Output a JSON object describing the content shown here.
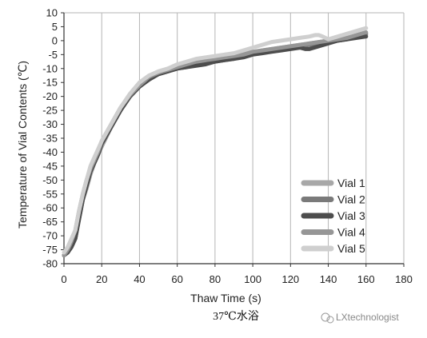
{
  "chart_data": {
    "type": "line",
    "xlabel": "Thaw Time (s)",
    "ylabel": "Temperature of Vial Contents (℃)",
    "xlim": [
      0,
      180
    ],
    "ylim": [
      -80,
      10
    ],
    "xticks": [
      0,
      20,
      40,
      60,
      80,
      100,
      120,
      140,
      160,
      180
    ],
    "yticks": [
      10,
      5,
      0,
      -5,
      -10,
      -15,
      -20,
      -25,
      -30,
      -35,
      -40,
      -45,
      -50,
      -55,
      -60,
      -65,
      -70,
      -75,
      -80
    ],
    "grid": "vertical",
    "legend_position": "bottom-right",
    "series": [
      {
        "name": "Vial  1",
        "color": "#a8a8a8",
        "x": [
          0,
          2,
          4,
          6,
          8,
          10,
          12,
          14,
          16,
          18,
          20,
          25,
          30,
          35,
          40,
          45,
          50,
          55,
          60,
          65,
          70,
          75,
          80,
          85,
          90,
          95,
          100,
          105,
          110,
          115,
          120,
          125,
          130,
          135,
          140,
          145,
          150,
          155,
          160
        ],
        "y": [
          -77,
          -76,
          -73,
          -70,
          -63,
          -57,
          -53,
          -48,
          -44,
          -41,
          -38,
          -31,
          -25,
          -20,
          -16,
          -13,
          -11.5,
          -10.5,
          -9,
          -8,
          -7,
          -6.5,
          -6,
          -5.5,
          -5,
          -4.5,
          -4,
          -3.5,
          -3,
          -2.5,
          -2,
          -1.5,
          -1,
          -0.5,
          0,
          0.5,
          1,
          1.5,
          2
        ]
      },
      {
        "name": "Vial  2",
        "color": "#7a7a7a",
        "x": [
          0,
          2,
          4,
          6,
          8,
          10,
          12,
          14,
          16,
          18,
          20,
          25,
          30,
          35,
          40,
          45,
          50,
          55,
          60,
          65,
          70,
          75,
          80,
          85,
          90,
          95,
          100,
          105,
          110,
          115,
          120,
          125,
          130,
          135,
          140,
          145,
          150,
          155,
          160
        ],
        "y": [
          -77,
          -76,
          -74,
          -71,
          -64,
          -57,
          -52,
          -47,
          -44,
          -41,
          -37,
          -31,
          -25,
          -20,
          -16.5,
          -13.5,
          -12,
          -11,
          -10,
          -9.5,
          -8.5,
          -8,
          -7.5,
          -7,
          -6.5,
          -5.5,
          -4.5,
          -4,
          -3.5,
          -3,
          -2.5,
          -2,
          -1.5,
          -1,
          -0.5,
          0,
          0.5,
          1.5,
          2.5
        ]
      },
      {
        "name": "Vial  3",
        "color": "#4d4d4d",
        "x": [
          0,
          2,
          4,
          6,
          8,
          10,
          12,
          14,
          16,
          18,
          20,
          25,
          30,
          35,
          40,
          45,
          50,
          55,
          60,
          65,
          70,
          75,
          80,
          85,
          90,
          95,
          100,
          105,
          110,
          115,
          120,
          125,
          128,
          130,
          135,
          140,
          145,
          150,
          155,
          160
        ],
        "y": [
          -77,
          -76,
          -74,
          -71,
          -64,
          -57,
          -52,
          -47,
          -44,
          -41,
          -37,
          -31,
          -25,
          -20,
          -16.5,
          -14,
          -12,
          -11,
          -10,
          -9.5,
          -9,
          -8.5,
          -7.5,
          -7,
          -6.5,
          -6,
          -5,
          -4.5,
          -4,
          -3.5,
          -3,
          -2.5,
          -3,
          -3,
          -2,
          -1,
          0,
          0.5,
          1,
          1.5
        ]
      },
      {
        "name": "Vial  4",
        "color": "#969696",
        "x": [
          0,
          2,
          4,
          6,
          8,
          10,
          12,
          14,
          16,
          18,
          20,
          25,
          30,
          35,
          40,
          45,
          50,
          55,
          60,
          65,
          70,
          75,
          80,
          85,
          90,
          95,
          100,
          105,
          110,
          115,
          120,
          125,
          130,
          135,
          140,
          145,
          150,
          155,
          160
        ],
        "y": [
          -77,
          -75,
          -72,
          -68,
          -61,
          -55,
          -50,
          -46,
          -43,
          -40,
          -36,
          -30,
          -24,
          -19.5,
          -16,
          -13,
          -11.5,
          -10.5,
          -9.5,
          -8.5,
          -7.5,
          -7,
          -6.5,
          -6,
          -5.5,
          -5,
          -4,
          -3.5,
          -3,
          -2.5,
          -2,
          -1.5,
          -1,
          -0.5,
          0,
          0.5,
          1,
          2,
          3
        ]
      },
      {
        "name": "Vial  5",
        "color": "#cfcfcf",
        "x": [
          0,
          2,
          4,
          6,
          8,
          10,
          12,
          14,
          16,
          18,
          20,
          25,
          30,
          35,
          40,
          45,
          50,
          55,
          60,
          65,
          70,
          75,
          80,
          85,
          90,
          95,
          100,
          105,
          110,
          115,
          120,
          125,
          130,
          133,
          135,
          137,
          140,
          145,
          150,
          155,
          160
        ],
        "y": [
          -76,
          -74,
          -71,
          -68,
          -61,
          -55,
          -50,
          -45,
          -42,
          -39,
          -36,
          -30,
          -24,
          -19,
          -15,
          -12.5,
          -11,
          -10,
          -8.5,
          -7.5,
          -6.5,
          -6,
          -5.5,
          -5,
          -4.5,
          -3.5,
          -2.5,
          -1.5,
          -0.5,
          0,
          0.5,
          1,
          1.5,
          2,
          2,
          1.5,
          0.5,
          1.5,
          2.5,
          3.5,
          4.5
        ]
      }
    ]
  },
  "caption": "37℃水浴",
  "watermark": "LXtechnologist"
}
